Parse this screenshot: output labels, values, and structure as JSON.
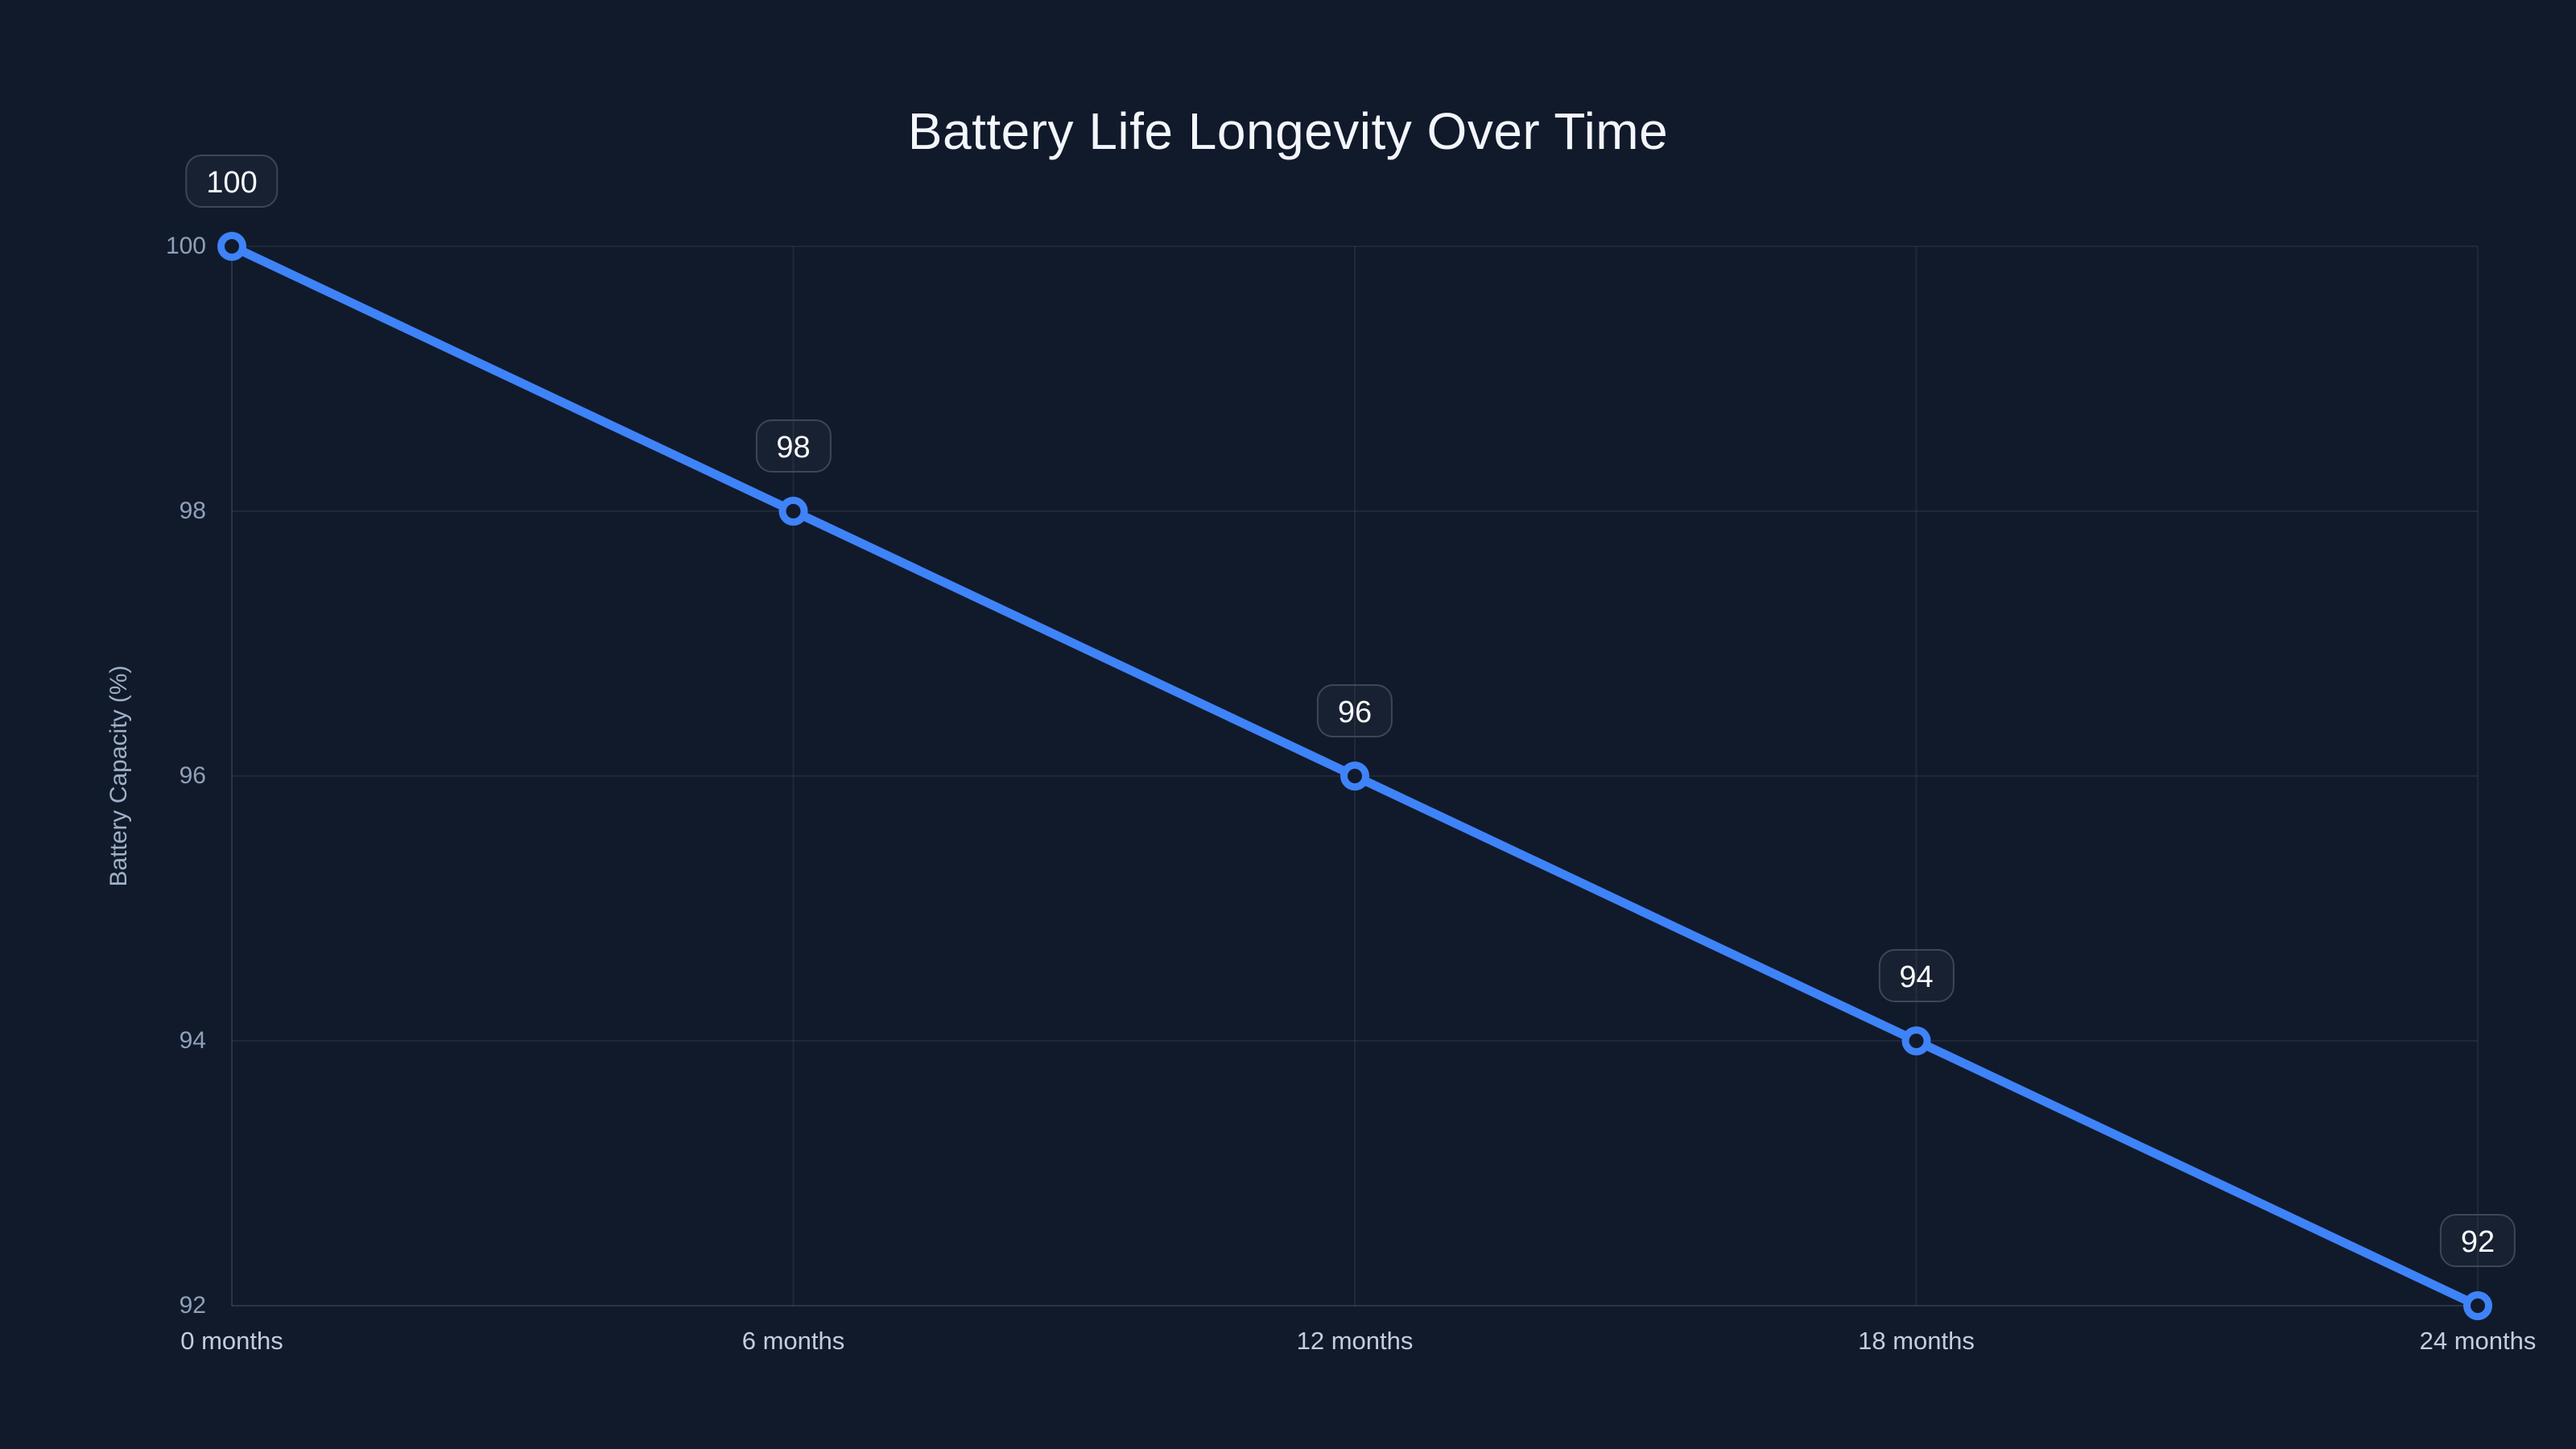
{
  "chart_data": {
    "type": "line",
    "title": "Battery Life Longevity Over Time",
    "xlabel": "",
    "ylabel": "Battery Capacity (%)",
    "categories": [
      "0 months",
      "6 months",
      "12 months",
      "18 months",
      "24 months"
    ],
    "series": [
      {
        "name": "Battery Capacity",
        "values": [
          100,
          98,
          96,
          94,
          92
        ]
      }
    ],
    "point_labels": [
      "100",
      "98",
      "96",
      "94",
      "92"
    ],
    "yticks": [
      100,
      98,
      96,
      94,
      92
    ],
    "ylim": [
      92,
      100
    ],
    "grid": true,
    "legend_position": "none",
    "colors": {
      "background": "#111a2b",
      "line": "#3f83f8",
      "marker_fill": "#111a2b",
      "grid": "rgba(148, 163, 184, 0.10)",
      "axis": "rgba(148, 163, 184, 0.20)",
      "title_text": "#f3f6fb",
      "y_tick_text": "#8fa0b8",
      "x_tick_text": "#c3cddd",
      "label_text": "#f8fafc",
      "label_border": "#3c4659"
    }
  }
}
